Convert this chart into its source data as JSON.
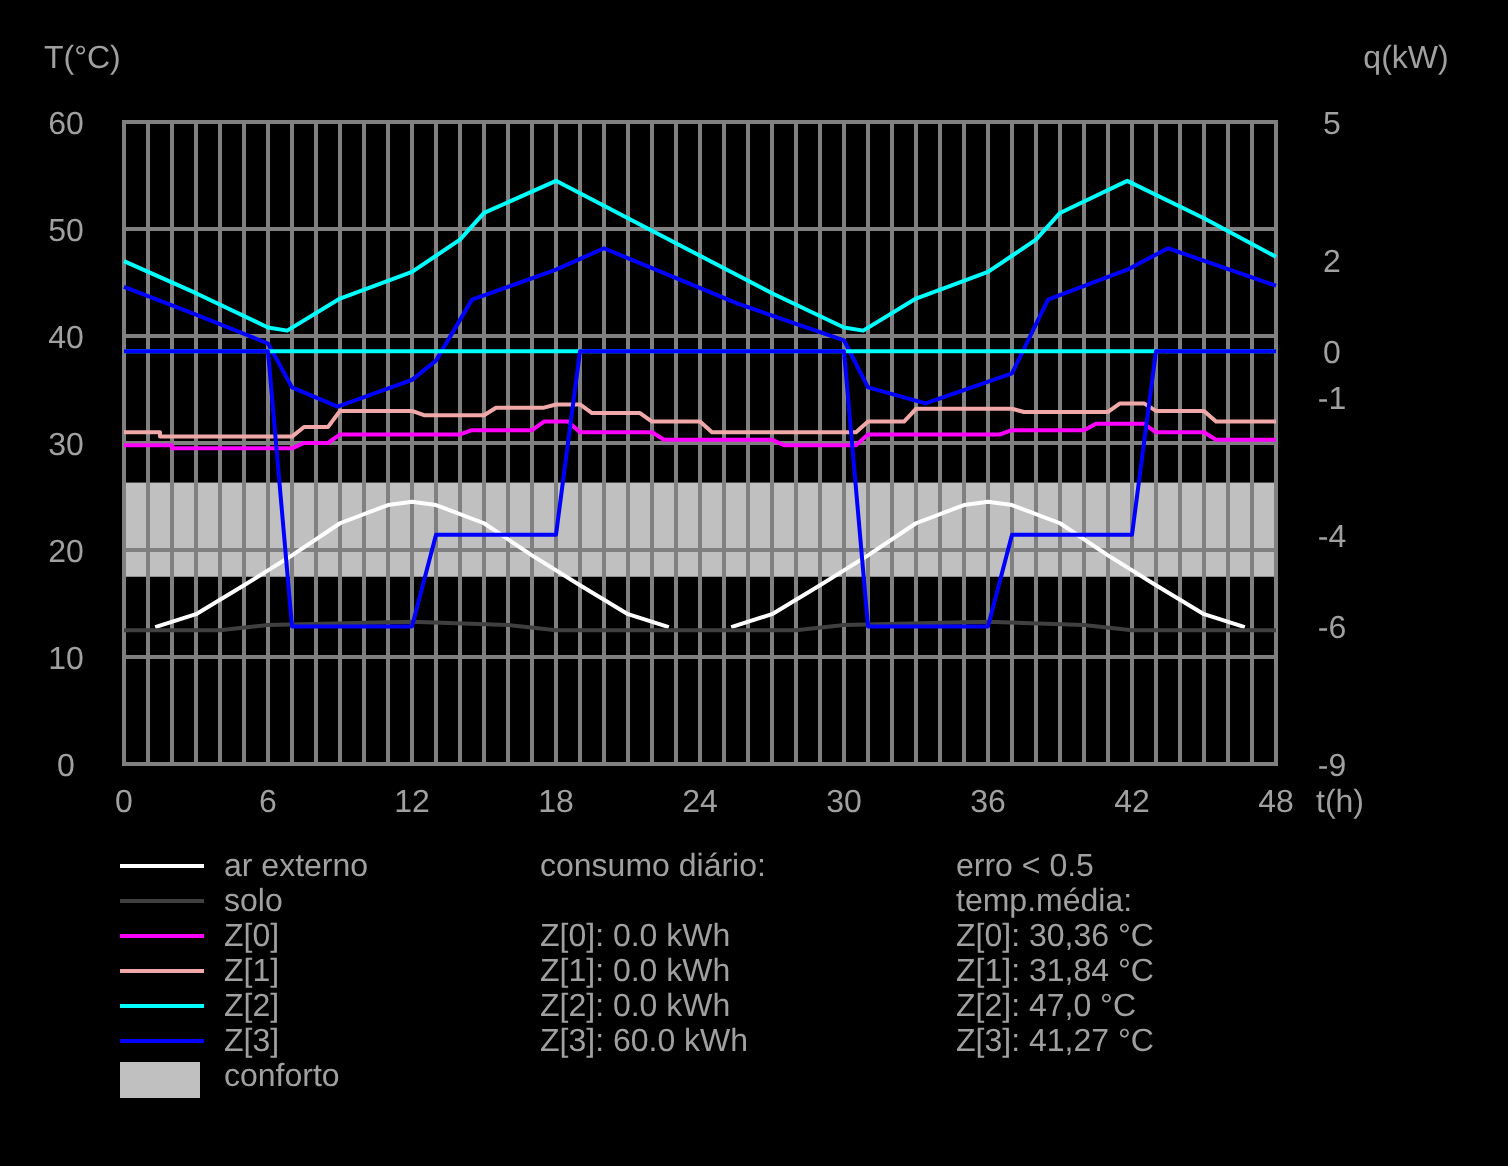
{
  "chart_data": {
    "type": "line",
    "ylabel": "T(°C)",
    "y2label": "q(kW)",
    "xlabel": "t(h)",
    "xlim": [
      0,
      48
    ],
    "xticks": [
      0,
      {
        "value": 1,
        "label": null
      },
      {
        "value": 2,
        "label": null
      },
      {
        "value": 3,
        "label": null
      },
      {
        "value": 4,
        "label": null
      },
      {
        "value": 5,
        "label": null
      },
      6,
      {
        "value": 7,
        "label": null
      },
      {
        "value": 8,
        "label": null
      },
      {
        "value": 9,
        "label": null
      },
      {
        "value": 10,
        "label": null
      },
      {
        "value": 11,
        "label": null
      },
      12,
      {
        "value": 13,
        "label": null
      },
      {
        "value": 14,
        "label": null
      },
      {
        "value": 15,
        "label": null
      },
      {
        "value": 16,
        "label": null
      },
      {
        "value": 17,
        "label": null
      },
      18,
      {
        "value": 19,
        "label": null
      },
      {
        "value": 20,
        "label": null
      },
      {
        "value": 21,
        "label": null
      },
      {
        "value": 22,
        "label": null
      },
      {
        "value": 23,
        "label": null
      },
      24,
      {
        "value": 25,
        "label": null
      },
      {
        "value": 26,
        "label": null
      },
      {
        "value": 27,
        "label": null
      },
      {
        "value": 28,
        "label": null
      },
      {
        "value": 29,
        "label": null
      },
      30,
      {
        "value": 31,
        "label": null
      },
      {
        "value": 32,
        "label": null
      },
      {
        "value": 33,
        "label": null
      },
      {
        "value": 34,
        "label": null
      },
      {
        "value": 35,
        "label": null
      },
      36,
      {
        "value": 37,
        "label": null
      },
      {
        "value": 38,
        "label": null
      },
      {
        "value": 39,
        "label": null
      },
      {
        "value": 40,
        "label": null
      },
      {
        "value": 41,
        "label": null
      },
      42,
      {
        "value": 43,
        "label": null
      },
      {
        "value": 44,
        "label": null
      },
      {
        "value": 45,
        "label": null
      },
      {
        "value": 46,
        "label": null
      },
      {
        "value": 47,
        "label": null
      },
      48
    ],
    "ylim": [
      0,
      60
    ],
    "yticks": [
      0,
      10,
      20,
      30,
      40,
      50,
      60
    ],
    "y2lim": [
      -9,
      5
    ],
    "y2ticks": [
      -9,
      -6,
      -4,
      -1,
      0,
      2,
      5
    ],
    "grid": true,
    "legend": "bottom",
    "bands": [
      {
        "axis": "y",
        "from": 17.5,
        "to": 26.3,
        "label": "conforto",
        "color": "#c0c0c0"
      }
    ],
    "series": [
      {
        "name": "ar externo",
        "color": "#ffffff",
        "x": [
          1.3,
          3,
          5,
          7,
          9,
          11,
          12,
          13,
          15,
          17,
          19,
          21,
          22.7,
          24,
          25.3,
          27,
          29,
          31,
          33,
          35,
          36,
          37,
          39,
          41,
          43,
          45,
          46.7
        ],
        "values": [
          12.8,
          14,
          16.7,
          19.5,
          22.5,
          24.2,
          24.5,
          24.2,
          22.5,
          19.5,
          16.7,
          14,
          12.8,
          null,
          12.8,
          14,
          16.7,
          19.5,
          22.5,
          24.2,
          24.5,
          24.2,
          22.5,
          19.5,
          16.7,
          14,
          12.8
        ]
      },
      {
        "name": "solo",
        "color": "#404040",
        "x": [
          0,
          4,
          6,
          12,
          16,
          18,
          28,
          30,
          36,
          40,
          42,
          48
        ],
        "values": [
          12.5,
          12.5,
          13,
          13.3,
          13,
          12.5,
          12.5,
          13,
          13.3,
          13,
          12.5,
          12.5
        ]
      },
      {
        "name": "Z[0]",
        "color": "#ff00ff",
        "x": [
          0,
          2,
          2,
          7,
          7.5,
          8.5,
          9,
          14,
          14.5,
          17,
          17.5,
          18.5,
          19,
          22,
          22.5,
          27,
          27.5,
          30.5,
          31,
          36.5,
          37,
          40,
          40.5,
          42.5,
          43,
          45,
          45.5,
          48
        ],
        "values": [
          29.8,
          29.8,
          29.5,
          29.5,
          30,
          30,
          30.8,
          30.8,
          31.2,
          31.2,
          32,
          32,
          31,
          31,
          30.3,
          30.3,
          29.8,
          29.8,
          30.8,
          30.8,
          31.2,
          31.2,
          31.8,
          31.8,
          31,
          31,
          30.3,
          30.3
        ]
      },
      {
        "name": "Z[1]",
        "color": "#f0a8a8",
        "x": [
          0,
          1.5,
          1.5,
          7,
          7.5,
          8.5,
          9,
          12,
          12.5,
          15,
          15.5,
          17.5,
          18,
          19,
          19.5,
          21.5,
          22,
          24,
          24.5,
          30.5,
          31,
          32.5,
          33,
          37,
          37.5,
          41,
          41.5,
          42.5,
          43,
          45,
          45.5,
          48
        ],
        "values": [
          31,
          31,
          30.6,
          30.6,
          31.5,
          31.5,
          33,
          33,
          32.6,
          32.6,
          33.3,
          33.3,
          33.6,
          33.6,
          32.8,
          32.8,
          32,
          32,
          31,
          31,
          32,
          32,
          33.2,
          33.2,
          32.9,
          32.9,
          33.7,
          33.7,
          33,
          33,
          32,
          32
        ]
      },
      {
        "name": "Z[2]",
        "color": "#00ffff",
        "x": [
          0,
          3,
          6,
          6.8,
          9,
          12,
          14,
          15,
          18,
          21,
          24,
          27,
          30,
          30.8,
          33,
          36,
          38,
          39,
          41.8,
          45,
          48
        ],
        "values": [
          47,
          44,
          40.8,
          40.5,
          43.5,
          46,
          49,
          51.5,
          54.5,
          51,
          47.5,
          44,
          40.8,
          40.5,
          43.5,
          46,
          49,
          51.5,
          54.5,
          51,
          47.4
        ]
      },
      {
        "name": "Z[3]",
        "color": "#0000ff",
        "x": [
          0,
          3,
          6,
          7,
          8.9,
          12,
          13,
          14.5,
          18,
          20,
          25.6,
          30,
          31,
          33.4,
          37,
          38.5,
          41.8,
          43.5,
          48
        ],
        "values": [
          44.6,
          42,
          39.3,
          35.2,
          33.4,
          35.9,
          37.7,
          43.4,
          46.2,
          48.2,
          43,
          39.6,
          35.2,
          33.7,
          36.5,
          43.4,
          46.2,
          48.2,
          44.7
        ]
      },
      {
        "color": "#00ffff",
        "axis": "y2",
        "x": [
          0,
          48
        ],
        "values": [
          0,
          0
        ]
      },
      {
        "color": "#0000ff",
        "axis": "y2",
        "x": [
          0,
          6,
          7,
          12,
          13,
          18,
          19,
          30,
          31,
          36,
          37,
          42,
          43,
          48
        ],
        "values": [
          0,
          0,
          -6,
          -6,
          -4,
          -4,
          0,
          0,
          -6,
          -6,
          -4,
          -4,
          0,
          0
        ]
      }
    ],
    "annotations": [
      "consumo diário:",
      "Z[0]: 0.0 kWh",
      "Z[1]: 0.0 kWh",
      "Z[2]: 0.0 kWh",
      "Z[3]: 60.0 kWh",
      "erro < 0.5",
      "temp.média:",
      "Z[0]: 30,36 °C",
      "Z[1]: 31,84 °C",
      "Z[2]: 47,0 °C",
      "Z[3]: 41,27 °C"
    ]
  }
}
